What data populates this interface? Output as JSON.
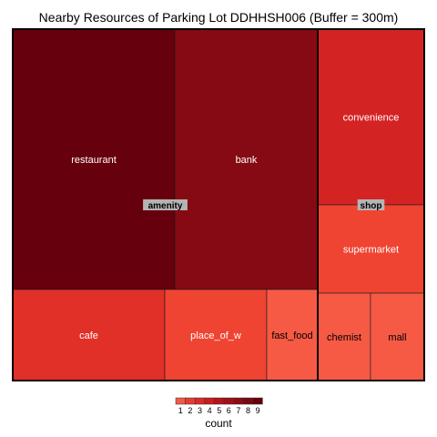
{
  "chart_data": {
    "type": "treemap",
    "title": "Nearby Resources of Parking Lot DDHHSH006 (Buffer = 300m)",
    "groups": [
      {
        "name": "amenity",
        "items": [
          {
            "name": "restaurant",
            "value": 9
          },
          {
            "name": "bank",
            "value": 8
          },
          {
            "name": "cafe",
            "value": 3
          },
          {
            "name": "place_of_w",
            "value": 2
          },
          {
            "name": "fast_food",
            "value": 1
          }
        ]
      },
      {
        "name": "shop",
        "items": [
          {
            "name": "convenience",
            "value": 4
          },
          {
            "name": "supermarket",
            "value": 2
          },
          {
            "name": "chemist",
            "value": 1
          },
          {
            "name": "mall",
            "value": 1
          }
        ]
      }
    ],
    "legend": {
      "title": "count",
      "ticks": [
        "1",
        "2",
        "3",
        "4",
        "5",
        "6",
        "7",
        "8",
        "9"
      ],
      "palette": [
        "#f15b47",
        "#e73c31",
        "#db2a26",
        "#cb1b1f",
        "#b8131b",
        "#a30f18",
        "#8c0c14",
        "#770911",
        "#67000d"
      ]
    },
    "tile_colors": {
      "restaurant": "#67000d",
      "bank": "#860a13",
      "cafe": "#e03028",
      "place_of_w": "#ef4432",
      "fast_food": "#f65a45",
      "convenience": "#d42323",
      "supermarket": "#ef4432",
      "chemist": "#f65a45",
      "mall": "#f65a45"
    }
  }
}
